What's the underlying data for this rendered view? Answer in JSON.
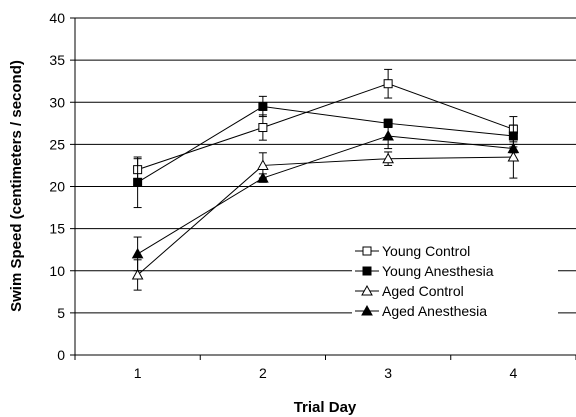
{
  "chart_data": {
    "type": "line",
    "title": "",
    "xlabel": "Trial Day",
    "ylabel": "Swim Speed (centimeters / second)",
    "categories": [
      "1",
      "2",
      "3",
      "4"
    ],
    "ylim": [
      0,
      40
    ],
    "yticks": [
      0,
      5,
      10,
      15,
      20,
      25,
      30,
      35,
      40
    ],
    "grid": "horizontal",
    "legend_position": "bottom-right",
    "series": [
      {
        "name": "Young Control",
        "marker": "square-open",
        "values": [
          22.0,
          27.0,
          32.2,
          26.8
        ],
        "errors": [
          1.3,
          1.5,
          1.7,
          1.5
        ]
      },
      {
        "name": "Young Anesthesia",
        "marker": "square-filled",
        "values": [
          20.5,
          29.5,
          27.5,
          26.0
        ],
        "errors": [
          3.0,
          1.2,
          0.5,
          1.3
        ]
      },
      {
        "name": "Aged Control",
        "marker": "triangle-open",
        "values": [
          9.5,
          22.5,
          23.3,
          23.5
        ],
        "errors": [
          1.8,
          1.5,
          0.8,
          2.5
        ]
      },
      {
        "name": "Aged Anesthesia",
        "marker": "triangle-filled",
        "values": [
          12.0,
          21.0,
          26.0,
          24.5
        ],
        "errors": [
          2.0,
          0.5,
          1.5,
          0.5
        ]
      }
    ]
  }
}
